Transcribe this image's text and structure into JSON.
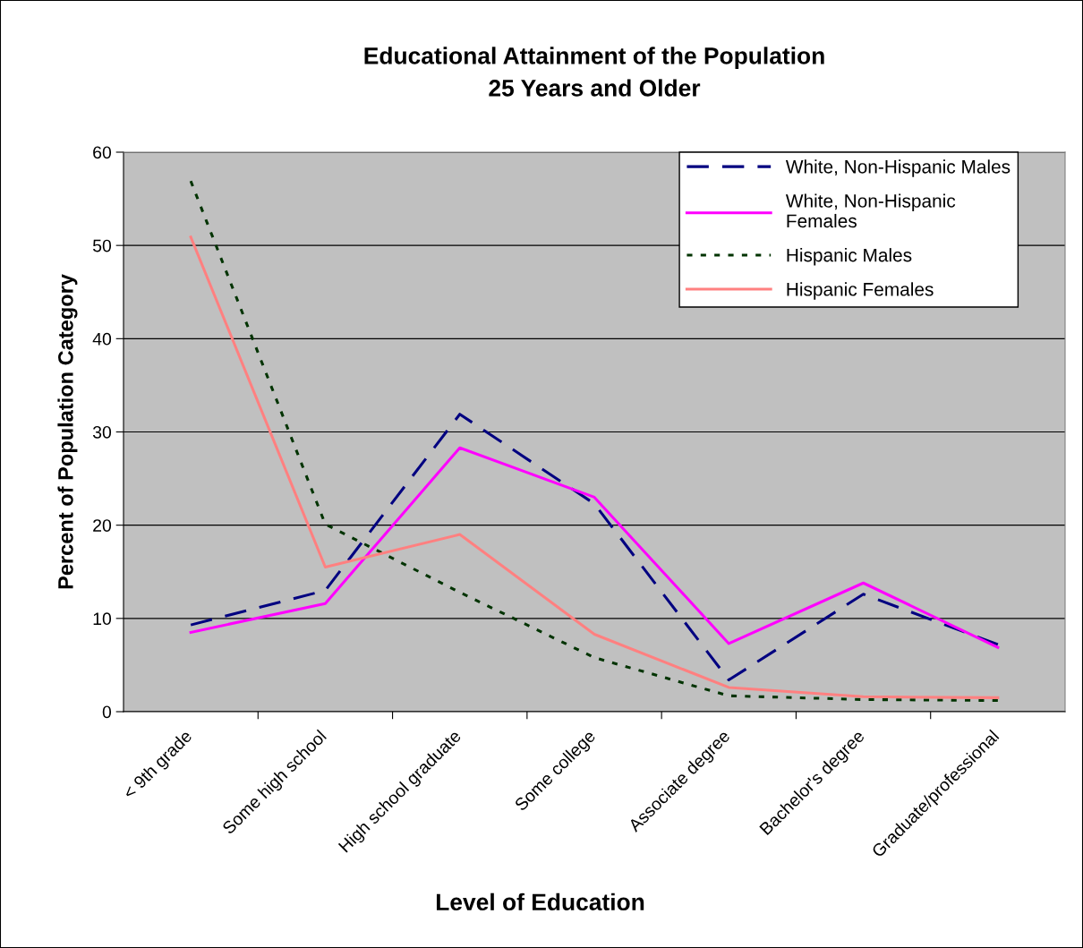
{
  "chart_data": {
    "type": "line",
    "title": "Educational Attainment of the Population\n25 Years and Older",
    "xlabel": "Level of Education",
    "ylabel": "Percent of Population Category",
    "categories": [
      "< 9th grade",
      "Some high school",
      "High school graduate",
      "Some college",
      "Associate degree",
      "Bachelor's degree",
      "Graduate/professional"
    ],
    "series": [
      {
        "name": "White, Non-Hispanic Males",
        "color": "#000080",
        "line_style": "dashed",
        "values": [
          9.3,
          13.0,
          31.9,
          22.3,
          3.4,
          12.6,
          7.2
        ]
      },
      {
        "name": "White, Non-Hispanic\nFemales",
        "color": "#ff00ff",
        "line_style": "solid",
        "values": [
          8.5,
          11.6,
          28.3,
          23.0,
          7.3,
          13.8,
          6.9
        ]
      },
      {
        "name": "Hispanic Males",
        "color": "#003300",
        "line_style": "dotted",
        "values": [
          56.9,
          20.1,
          12.8,
          5.8,
          1.7,
          1.3,
          1.2
        ]
      },
      {
        "name": "Hispanic Females",
        "color": "#ff8080",
        "line_style": "solid",
        "values": [
          50.9,
          15.5,
          19.0,
          8.3,
          2.6,
          1.6,
          1.5
        ]
      }
    ],
    "ylim": [
      0,
      60
    ],
    "yticks": [
      0,
      10,
      20,
      30,
      40,
      50,
      60
    ],
    "grid": "y",
    "legend": "top right",
    "marker": "none"
  }
}
